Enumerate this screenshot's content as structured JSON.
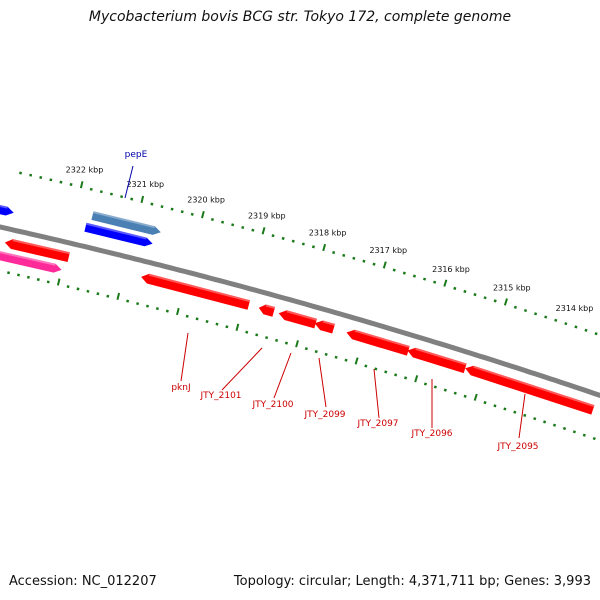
{
  "title": "Mycobacterium bovis BCG str. Tokyo 172, complete genome",
  "footer": {
    "accession": "Accession: NC_012207",
    "summary": "Topology: circular; Length: 4,371,711 bp; Genes: 3,993"
  },
  "colors": {
    "backbone": "#808080",
    "tick": "#1a7a1a",
    "gene_red": "#ff0000",
    "gene_blue": "#0000ff",
    "gene_steelblue": "#4a80b4",
    "gene_pink": "#ff2a9a",
    "label_red": "#cc0000",
    "label_blue": "#0000aa"
  },
  "scale": {
    "unit": "kbp",
    "labels": [
      "2322 kbp",
      "2321 kbp",
      "2320 kbp",
      "2319 kbp",
      "2318 kbp",
      "2317 kbp",
      "2316 kbp",
      "2315 kbp",
      "2314 kbp"
    ]
  },
  "gene_labels": [
    {
      "text": "pepE",
      "strand": "forward"
    },
    {
      "text": "pknJ",
      "strand": "reverse"
    },
    {
      "text": "JTY_2101",
      "strand": "reverse"
    },
    {
      "text": "JTY_2100",
      "strand": "reverse"
    },
    {
      "text": "JTY_2099",
      "strand": "reverse"
    },
    {
      "text": "JTY_2097",
      "strand": "reverse"
    },
    {
      "text": "JTY_2096",
      "strand": "reverse"
    },
    {
      "text": "JTY_2095",
      "strand": "reverse"
    }
  ]
}
